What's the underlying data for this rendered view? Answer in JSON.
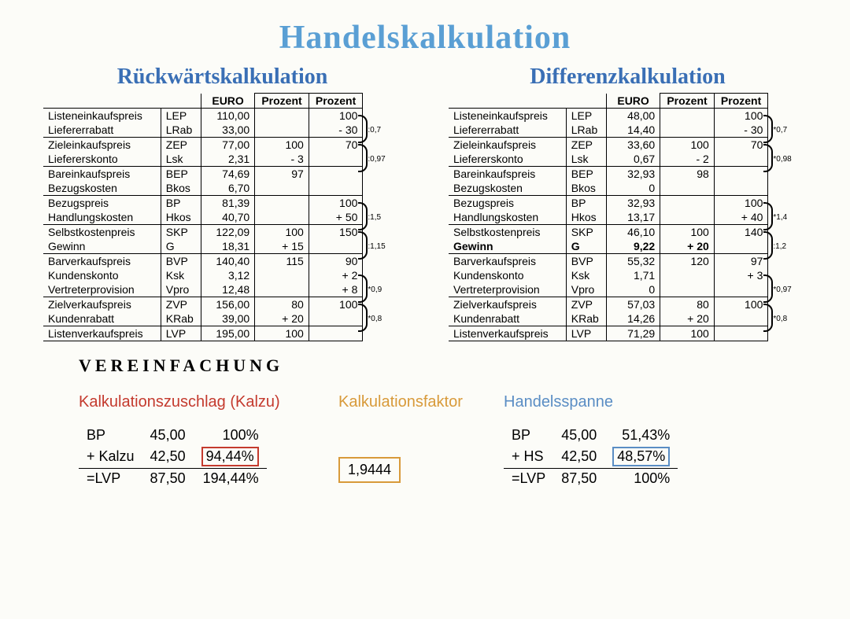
{
  "title": "Handelskalkulation",
  "left": {
    "title": "Rückwärtskalkulation",
    "headers": [
      "",
      "",
      "EURO",
      "Prozent",
      "Prozent"
    ],
    "rows": [
      {
        "name": "Listeneinkaufspreis",
        "abbr": "LEP",
        "euro": "110,00",
        "p1": "",
        "p2": "100",
        "top": true
      },
      {
        "name": "Liefererrabatt",
        "abbr": "LRab",
        "euro": "33,00",
        "p1": "",
        "p2": "-   30",
        "note": ":0,7"
      },
      {
        "name": "Zieleinkaufspreis",
        "abbr": "ZEP",
        "euro": "77,00",
        "p1": "100",
        "p2": "70",
        "top": true
      },
      {
        "name": "Liefererskonto",
        "abbr": "Lsk",
        "euro": "2,31",
        "p1": "-   3",
        "p2": "",
        "note": ":0,97"
      },
      {
        "name": "Bareinkaufspreis",
        "abbr": "BEP",
        "euro": "74,69",
        "p1": "97",
        "p2": "",
        "top": true
      },
      {
        "name": "Bezugskosten",
        "abbr": "Bkos",
        "euro": "6,70",
        "p1": "",
        "p2": ""
      },
      {
        "name": "Bezugspreis",
        "abbr": "BP",
        "euro": "81,39",
        "p1": "",
        "p2": "100",
        "top": true
      },
      {
        "name": "Handlungskosten",
        "abbr": "Hkos",
        "euro": "40,70",
        "p1": "",
        "p2": "+ 50",
        "note": ":1,5"
      },
      {
        "name": "Selbstkostenpreis",
        "abbr": "SKP",
        "euro": "122,09",
        "p1": "100",
        "p2": "150",
        "top": true
      },
      {
        "name": "Gewinn",
        "abbr": "G",
        "euro": "18,31",
        "p1": "+ 15",
        "p2": "",
        "note": ":1,15"
      },
      {
        "name": "Barverkaufspreis",
        "abbr": "BVP",
        "euro": "140,40",
        "p1": "115",
        "p2": "90",
        "top": true
      },
      {
        "name": "Kundenskonto",
        "abbr": "Ksk",
        "euro": "3,12",
        "p1": "",
        "p2": "+ 2"
      },
      {
        "name": "Vertreterprovision",
        "abbr": "Vpro",
        "euro": "12,48",
        "p1": "",
        "p2": "+ 8",
        "note": "*0,9"
      },
      {
        "name": "Zielverkaufspreis",
        "abbr": "ZVP",
        "euro": "156,00",
        "p1": "80",
        "p2": "100",
        "top": true
      },
      {
        "name": "Kundenrabatt",
        "abbr": "KRab",
        "euro": "39,00",
        "p1": "+ 20",
        "p2": "",
        "note": "*0,8"
      },
      {
        "name": "Listenverkaufspreis",
        "abbr": "LVP",
        "euro": "195,00",
        "p1": "100",
        "p2": "",
        "top": true,
        "bottom": true
      }
    ]
  },
  "right": {
    "title": "Differenzkalkulation",
    "headers": [
      "",
      "",
      "EURO",
      "Prozent",
      "Prozent"
    ],
    "rows": [
      {
        "name": "Listeneinkaufspreis",
        "abbr": "LEP",
        "euro": "48,00",
        "p1": "",
        "p2": "100",
        "top": true
      },
      {
        "name": "Liefererrabatt",
        "abbr": "LRab",
        "euro": "14,40",
        "p1": "",
        "p2": "-   30",
        "note": "*0,7"
      },
      {
        "name": "Zieleinkaufspreis",
        "abbr": "ZEP",
        "euro": "33,60",
        "p1": "100",
        "p2": "70",
        "top": true
      },
      {
        "name": "Liefererskonto",
        "abbr": "Lsk",
        "euro": "0,67",
        "p1": "-   2",
        "p2": "",
        "note": "*0,98"
      },
      {
        "name": "Bareinkaufspreis",
        "abbr": "BEP",
        "euro": "32,93",
        "p1": "98",
        "p2": "",
        "top": true
      },
      {
        "name": "Bezugskosten",
        "abbr": "Bkos",
        "euro": "0",
        "p1": "",
        "p2": ""
      },
      {
        "name": "Bezugspreis",
        "abbr": "BP",
        "euro": "32,93",
        "p1": "",
        "p2": "100",
        "top": true
      },
      {
        "name": "Handlungskosten",
        "abbr": "Hkos",
        "euro": "13,17",
        "p1": "",
        "p2": "+ 40",
        "note": "*1,4"
      },
      {
        "name": "Selbstkostenpreis",
        "abbr": "SKP",
        "euro": "46,10",
        "p1": "100",
        "p2": "140",
        "top": true
      },
      {
        "name": "Gewinn",
        "abbr": "G",
        "euro": "9,22",
        "p1": "+ 20",
        "p2": "",
        "note": ":1,2",
        "bold": true
      },
      {
        "name": "Barverkaufspreis",
        "abbr": "BVP",
        "euro": "55,32",
        "p1": "120",
        "p2": "97",
        "top": true
      },
      {
        "name": "Kundenskonto",
        "abbr": "Ksk",
        "euro": "1,71",
        "p1": "",
        "p2": "+ 3"
      },
      {
        "name": "Vertreterprovision",
        "abbr": "Vpro",
        "euro": "0",
        "p1": "",
        "p2": "",
        "note": "*0,97"
      },
      {
        "name": "Zielverkaufspreis",
        "abbr": "ZVP",
        "euro": "57,03",
        "p1": "80",
        "p2": "100",
        "top": true
      },
      {
        "name": "Kundenrabatt",
        "abbr": "KRab",
        "euro": "14,26",
        "p1": "+ 20",
        "p2": "",
        "note": "*0,8"
      },
      {
        "name": "Listenverkaufspreis",
        "abbr": "LVP",
        "euro": "71,29",
        "p1": "100",
        "p2": "",
        "top": true,
        "bottom": true
      }
    ]
  },
  "simplify": {
    "heading": "VEREINFACHUNG",
    "kalzu": {
      "title": "Kalkulationszuschlag (Kalzu)",
      "rows": [
        [
          "BP",
          "45,00",
          "100%"
        ],
        [
          "+ Kalzu",
          "42,50",
          "94,44%"
        ],
        [
          "=LVP",
          "87,50",
          "194,44%"
        ]
      ],
      "highlight": "94,44%"
    },
    "faktor": {
      "title": "Kalkulationsfaktor",
      "value": "1,9444"
    },
    "spanne": {
      "title": "Handelsspanne",
      "rows": [
        [
          "BP",
          "45,00",
          "51,43%"
        ],
        [
          "+ HS",
          "42,50",
          "48,57%"
        ],
        [
          "=LVP",
          "87,50",
          "100%"
        ]
      ],
      "highlight": "48,57%"
    }
  }
}
